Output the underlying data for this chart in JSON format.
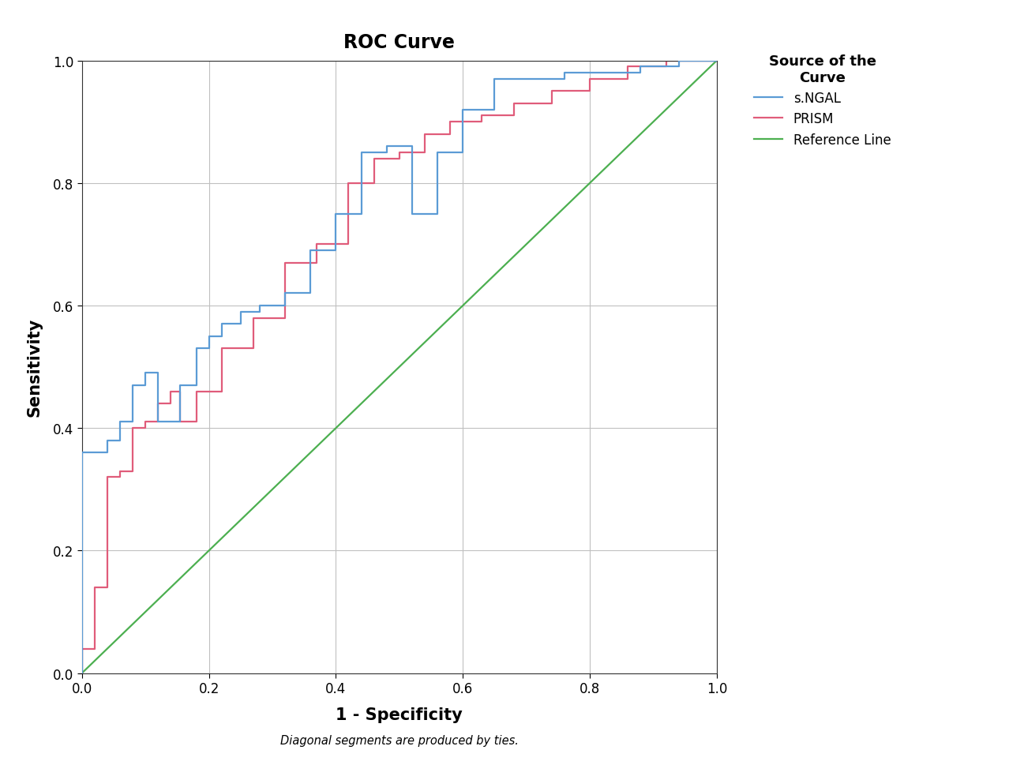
{
  "title": "ROC Curve",
  "xlabel": "1 - Specificity",
  "ylabel": "Sensitivity",
  "legend_title": "Source of the\nCurve",
  "footnote": "Diagonal segments are produced by ties.",
  "ngal_x": [
    0.0,
    0.0,
    0.04,
    0.04,
    0.06,
    0.06,
    0.08,
    0.08,
    0.1,
    0.1,
    0.12,
    0.12,
    0.155,
    0.155,
    0.18,
    0.18,
    0.2,
    0.2,
    0.22,
    0.22,
    0.25,
    0.25,
    0.28,
    0.28,
    0.32,
    0.32,
    0.36,
    0.36,
    0.4,
    0.4,
    0.44,
    0.44,
    0.48,
    0.48,
    0.52,
    0.52,
    0.56,
    0.56,
    0.6,
    0.6,
    0.65,
    0.65,
    0.7,
    0.7,
    0.76,
    0.76,
    0.82,
    0.82,
    0.88,
    0.88,
    0.94,
    0.94,
    1.0
  ],
  "ngal_y": [
    0.0,
    0.36,
    0.36,
    0.38,
    0.38,
    0.41,
    0.41,
    0.47,
    0.47,
    0.49,
    0.49,
    0.41,
    0.41,
    0.47,
    0.47,
    0.53,
    0.53,
    0.55,
    0.55,
    0.57,
    0.57,
    0.59,
    0.59,
    0.6,
    0.6,
    0.62,
    0.62,
    0.69,
    0.69,
    0.75,
    0.75,
    0.85,
    0.85,
    0.86,
    0.86,
    0.75,
    0.75,
    0.85,
    0.85,
    0.92,
    0.92,
    0.97,
    0.97,
    0.97,
    0.97,
    0.98,
    0.98,
    0.98,
    0.98,
    0.99,
    0.99,
    1.0,
    1.0
  ],
  "prism_x": [
    0.0,
    0.0,
    0.02,
    0.02,
    0.04,
    0.04,
    0.06,
    0.06,
    0.08,
    0.08,
    0.1,
    0.1,
    0.12,
    0.12,
    0.14,
    0.14,
    0.155,
    0.155,
    0.18,
    0.18,
    0.22,
    0.22,
    0.27,
    0.27,
    0.32,
    0.32,
    0.37,
    0.37,
    0.42,
    0.42,
    0.46,
    0.46,
    0.5,
    0.5,
    0.54,
    0.54,
    0.58,
    0.58,
    0.63,
    0.63,
    0.68,
    0.68,
    0.74,
    0.74,
    0.8,
    0.8,
    0.86,
    0.86,
    0.92,
    0.92,
    0.96,
    0.96,
    1.0
  ],
  "prism_y": [
    0.0,
    0.04,
    0.04,
    0.14,
    0.14,
    0.32,
    0.32,
    0.33,
    0.33,
    0.4,
    0.4,
    0.41,
    0.41,
    0.44,
    0.44,
    0.46,
    0.46,
    0.41,
    0.41,
    0.46,
    0.46,
    0.53,
    0.53,
    0.58,
    0.58,
    0.67,
    0.67,
    0.7,
    0.7,
    0.8,
    0.8,
    0.84,
    0.84,
    0.85,
    0.85,
    0.88,
    0.88,
    0.9,
    0.9,
    0.91,
    0.91,
    0.93,
    0.93,
    0.95,
    0.95,
    0.97,
    0.97,
    0.99,
    0.99,
    1.0,
    1.0,
    1.0,
    1.0
  ],
  "ngal_color": "#5B9BD5",
  "prism_color": "#E05C7A",
  "ref_color": "#4CAF50",
  "background_color": "#ffffff",
  "grid_color": "#c0c0c0",
  "xlim": [
    0.0,
    1.0
  ],
  "ylim": [
    0.0,
    1.0
  ],
  "tick_values": [
    0.0,
    0.2,
    0.4,
    0.6,
    0.8,
    1.0
  ],
  "line_width": 1.6
}
